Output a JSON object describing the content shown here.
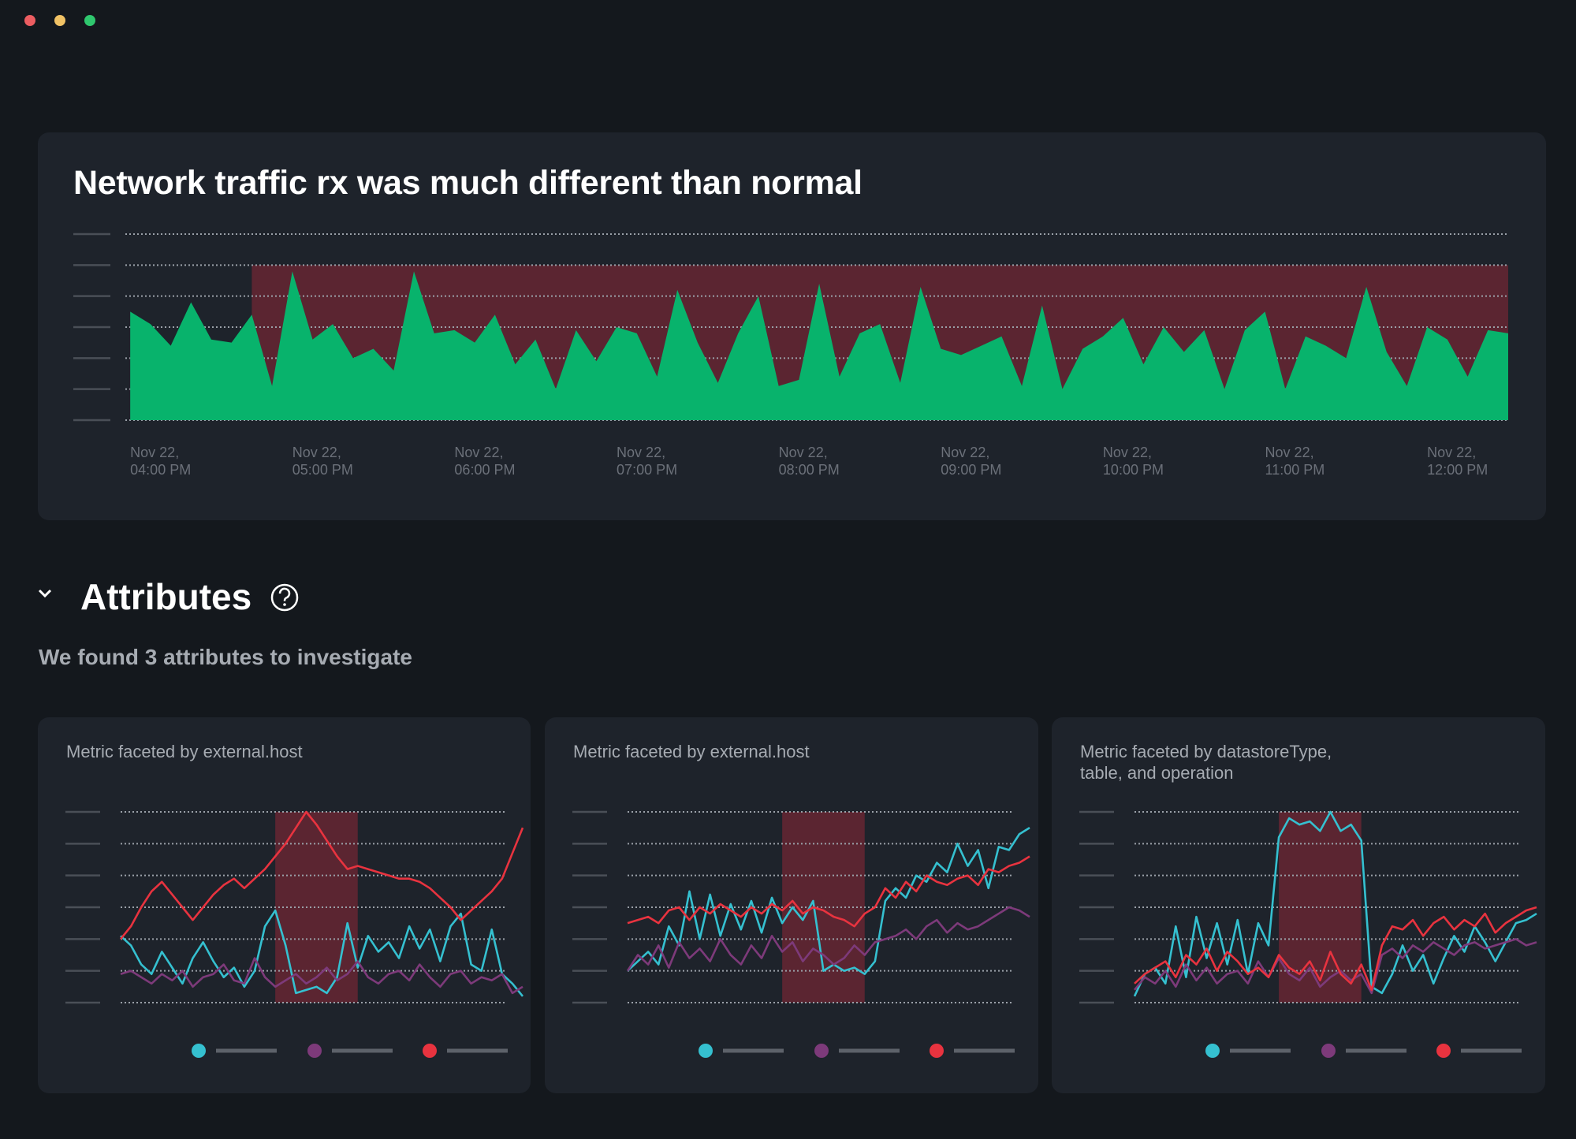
{
  "chart_data": [
    {
      "type": "area",
      "title": "Network traffic rx was much different than normal",
      "color": "#08b36c",
      "highlight_color": "#5b2531",
      "highlight_x": [
        16.75,
        24.5
      ],
      "highlight_ylim": [
        0,
        5
      ],
      "x": [
        16,
        16.125,
        16.25,
        16.375,
        16.5,
        16.625,
        16.75,
        16.875,
        17,
        17.125,
        17.25,
        17.375,
        17.5,
        17.625,
        17.75,
        17.875,
        18,
        18.125,
        18.25,
        18.375,
        18.5,
        18.625,
        18.75,
        18.875,
        19,
        19.125,
        19.25,
        19.375,
        19.5,
        19.625,
        19.75,
        19.875,
        20,
        20.125,
        20.25,
        20.375,
        20.5,
        20.625,
        20.75,
        20.875,
        21,
        21.125,
        21.25,
        21.375,
        21.5,
        21.625,
        21.75,
        21.875,
        22,
        22.125,
        22.25,
        22.375,
        22.5,
        22.625,
        22.75,
        22.875,
        23,
        23.125,
        23.25,
        23.375,
        23.5,
        23.625,
        23.75,
        23.875,
        24,
        24.125,
        24.25,
        24.375,
        24.5
      ],
      "values": [
        3.5,
        3.1,
        2.4,
        3.8,
        2.6,
        2.5,
        3.4,
        1.1,
        4.8,
        2.6,
        3.1,
        2.0,
        2.3,
        1.6,
        4.8,
        2.8,
        2.9,
        2.5,
        3.4,
        1.8,
        2.6,
        1.0,
        2.9,
        1.9,
        3.0,
        2.8,
        1.4,
        4.2,
        2.5,
        1.2,
        2.8,
        4.0,
        1.1,
        1.3,
        4.4,
        1.4,
        2.8,
        3.1,
        1.2,
        4.3,
        2.3,
        2.1,
        2.4,
        2.7,
        1.1,
        3.7,
        1.0,
        2.3,
        2.7,
        3.3,
        1.8,
        3.0,
        2.2,
        2.9,
        1.0,
        2.9,
        3.5,
        1.0,
        2.7,
        2.4,
        2.0,
        4.3,
        2.2,
        1.1,
        3.0,
        2.6,
        1.4,
        2.9,
        2.8
      ],
      "xlim": [
        15.97,
        24.5
      ],
      "xticks": [
        {
          "value": 16,
          "label": "Nov 22,\n04:00 PM"
        },
        {
          "value": 17,
          "label": "Nov 22,\n05:00 PM"
        },
        {
          "value": 18,
          "label": "Nov 22,\n06:00 PM"
        },
        {
          "value": 19,
          "label": "Nov 22,\n07:00 PM"
        },
        {
          "value": 20,
          "label": "Nov 22,\n08:00 PM"
        },
        {
          "value": 21,
          "label": "Nov 22,\n09:00 PM"
        },
        {
          "value": 22,
          "label": "Nov 22,\n10:00 PM"
        },
        {
          "value": 23,
          "label": "Nov 22,\n11:00 PM"
        },
        {
          "value": 24,
          "label": "Nov 22,\n12:00 PM"
        }
      ],
      "ylim": [
        0,
        6
      ],
      "yticks": [
        0,
        1,
        2,
        3,
        4,
        5,
        6
      ],
      "grid": true
    },
    {
      "type": "line",
      "title": "Metric faceted by external.host",
      "highlight_color": "#5b2531",
      "highlight_x": [
        15,
        23
      ],
      "ylim": [
        0,
        6
      ],
      "yticks": [
        0,
        1,
        2,
        3,
        4,
        5,
        6
      ],
      "grid": true,
      "series": [
        {
          "color": "#35c0d0",
          "values": [
            2.1,
            1.8,
            1.2,
            0.9,
            1.6,
            1.1,
            0.6,
            1.4,
            1.9,
            1.3,
            0.8,
            1.1,
            0.5,
            1.0,
            2.4,
            2.9,
            1.8,
            0.3,
            0.4,
            0.5,
            0.3,
            0.8,
            2.5,
            1.1,
            2.1,
            1.6,
            1.9,
            1.4,
            2.4,
            1.7,
            2.3,
            1.3,
            2.4,
            2.8,
            1.2,
            1.0,
            2.3,
            0.9,
            0.6,
            0.2
          ]
        },
        {
          "color": "#7d3a7a",
          "values": [
            0.9,
            1.0,
            0.8,
            0.6,
            0.9,
            0.7,
            1.0,
            0.5,
            0.8,
            0.9,
            1.2,
            0.7,
            0.6,
            1.4,
            0.8,
            0.5,
            0.7,
            0.9,
            0.6,
            0.8,
            1.1,
            0.7,
            0.9,
            1.3,
            0.8,
            0.6,
            0.9,
            1.0,
            0.7,
            1.2,
            0.8,
            0.5,
            0.9,
            1.0,
            0.6,
            0.8,
            0.7,
            0.9,
            0.3,
            0.5
          ]
        },
        {
          "color": "#e8333f",
          "values": [
            2.0,
            2.4,
            3.0,
            3.5,
            3.8,
            3.4,
            3.0,
            2.6,
            3.0,
            3.4,
            3.7,
            3.9,
            3.6,
            3.9,
            4.2,
            4.6,
            5.0,
            5.5,
            6.0,
            5.6,
            5.1,
            4.6,
            4.2,
            4.3,
            4.2,
            4.1,
            4.0,
            3.9,
            3.9,
            3.8,
            3.6,
            3.3,
            3.0,
            2.6,
            2.9,
            3.2,
            3.5,
            3.9,
            4.7,
            5.5
          ]
        }
      ]
    },
    {
      "type": "line",
      "title": "Metric faceted by external.host",
      "highlight_color": "#5b2531",
      "highlight_x": [
        15,
        23
      ],
      "ylim": [
        0,
        6
      ],
      "yticks": [
        0,
        1,
        2,
        3,
        4,
        5,
        6
      ],
      "grid": true,
      "series": [
        {
          "color": "#35c0d0",
          "values": [
            1.0,
            1.3,
            1.6,
            1.2,
            2.4,
            1.8,
            3.5,
            2.0,
            3.4,
            2.1,
            3.1,
            2.3,
            3.2,
            2.2,
            3.3,
            2.5,
            3.0,
            2.6,
            3.2,
            1.0,
            1.2,
            1.0,
            1.1,
            0.9,
            1.3,
            3.2,
            3.6,
            3.3,
            4.0,
            3.8,
            4.4,
            4.1,
            5.0,
            4.3,
            4.8,
            3.6,
            4.9,
            4.8,
            5.3,
            5.5
          ]
        },
        {
          "color": "#7d3a7a",
          "values": [
            1.0,
            1.5,
            1.2,
            1.8,
            1.1,
            1.9,
            1.4,
            1.7,
            1.3,
            2.0,
            1.5,
            1.2,
            1.8,
            1.4,
            2.1,
            1.6,
            1.9,
            1.3,
            1.7,
            1.5,
            1.2,
            1.4,
            1.8,
            1.5,
            1.9,
            2.0,
            2.1,
            2.3,
            2.0,
            2.4,
            2.6,
            2.2,
            2.5,
            2.3,
            2.4,
            2.6,
            2.8,
            3.0,
            2.9,
            2.7
          ]
        },
        {
          "color": "#e8333f",
          "values": [
            2.5,
            2.6,
            2.7,
            2.5,
            2.9,
            3.0,
            2.6,
            3.0,
            2.8,
            3.1,
            2.9,
            2.7,
            3.0,
            2.8,
            3.1,
            2.9,
            3.2,
            2.8,
            3.0,
            2.9,
            2.7,
            2.6,
            2.4,
            2.8,
            3.0,
            3.6,
            3.3,
            3.8,
            3.5,
            4.0,
            3.8,
            3.7,
            3.9,
            4.0,
            3.7,
            4.2,
            4.1,
            4.3,
            4.4,
            4.6
          ]
        }
      ]
    },
    {
      "type": "line",
      "title": "Metric faceted by datastoreType,\ntable, and operation",
      "highlight_color": "#5b2531",
      "highlight_x": [
        14,
        22
      ],
      "ylim": [
        0,
        6
      ],
      "yticks": [
        0,
        1,
        2,
        3,
        4,
        5,
        6
      ],
      "grid": true,
      "series": [
        {
          "color": "#35c0d0",
          "values": [
            0.2,
            0.9,
            1.1,
            0.6,
            2.4,
            0.8,
            2.7,
            1.4,
            2.5,
            1.2,
            2.6,
            0.9,
            2.5,
            1.8,
            5.2,
            5.8,
            5.6,
            5.7,
            5.4,
            6.0,
            5.4,
            5.6,
            5.1,
            0.5,
            0.3,
            0.9,
            1.8,
            1.0,
            1.5,
            0.6,
            1.4,
            2.1,
            1.6,
            2.4,
            1.9,
            1.3,
            1.9,
            2.5,
            2.6,
            2.8
          ]
        },
        {
          "color": "#7d3a7a",
          "values": [
            0.4,
            0.8,
            0.6,
            1.0,
            0.5,
            1.2,
            0.7,
            1.1,
            0.6,
            0.9,
            1.0,
            0.6,
            1.3,
            0.8,
            1.4,
            0.9,
            0.7,
            1.1,
            0.5,
            0.8,
            1.0,
            0.7,
            0.9,
            0.3,
            1.5,
            1.7,
            1.4,
            1.8,
            1.6,
            1.9,
            1.7,
            1.5,
            1.8,
            1.9,
            1.7,
            1.8,
            1.9,
            2.0,
            1.8,
            1.9
          ]
        },
        {
          "color": "#e8333f",
          "values": [
            0.6,
            0.9,
            1.1,
            1.3,
            0.8,
            1.5,
            1.2,
            1.7,
            1.0,
            1.6,
            1.3,
            0.9,
            1.1,
            0.8,
            1.5,
            1.1,
            0.9,
            1.3,
            0.7,
            1.6,
            0.9,
            0.6,
            1.2,
            0.4,
            1.8,
            2.4,
            2.3,
            2.6,
            2.1,
            2.5,
            2.7,
            2.3,
            2.6,
            2.4,
            2.8,
            2.2,
            2.5,
            2.7,
            2.9,
            3.0
          ]
        }
      ]
    }
  ],
  "attributes": {
    "heading": "Attributes",
    "subtitle": "We found 3 attributes to investigate"
  }
}
